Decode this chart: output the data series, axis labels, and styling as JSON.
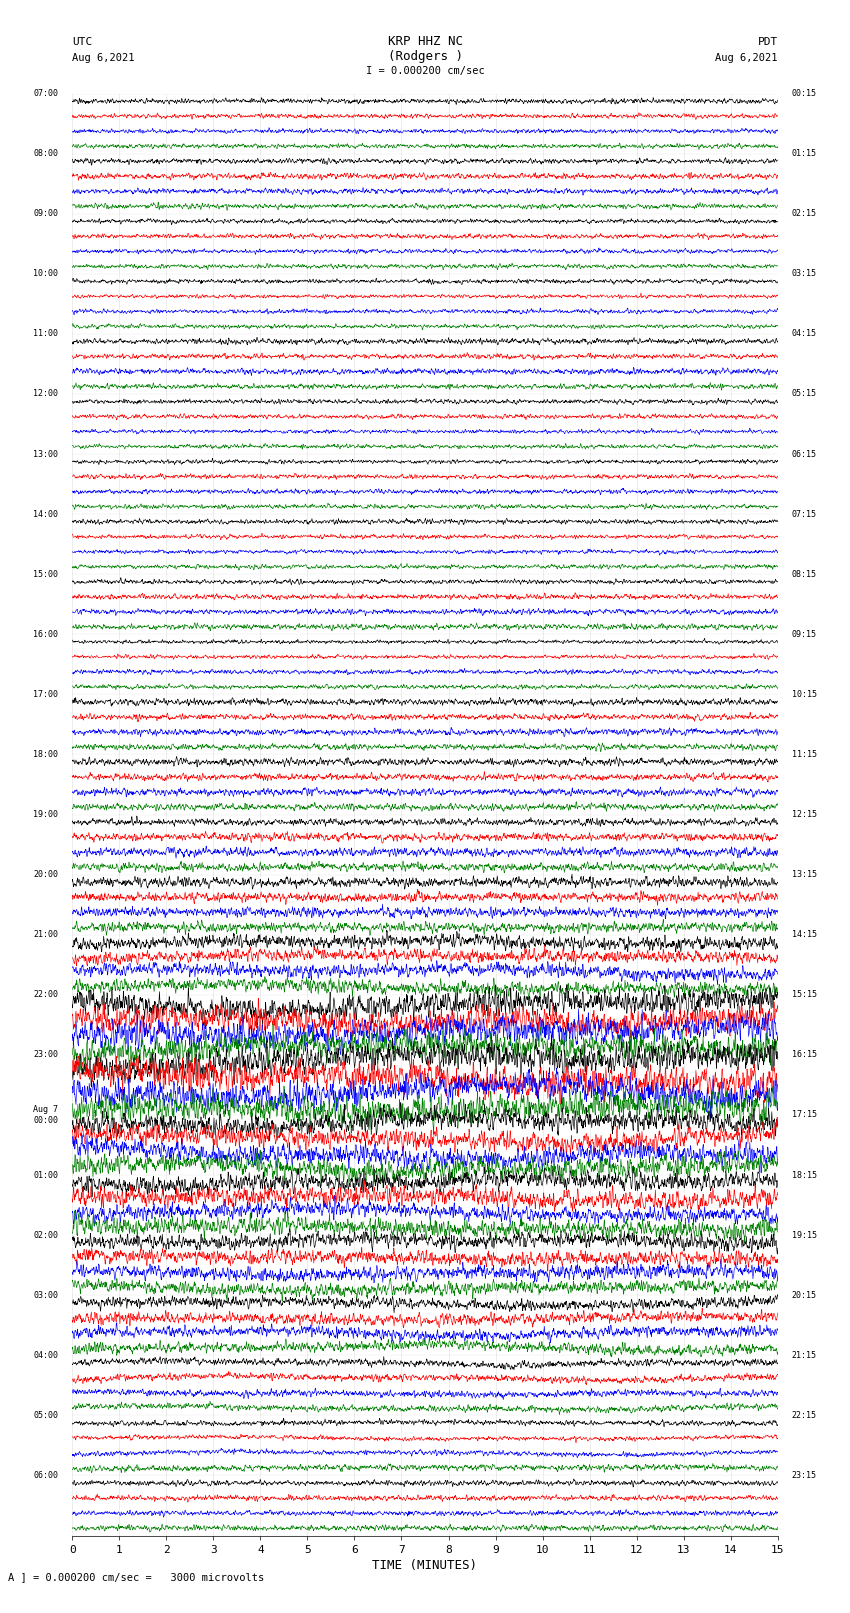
{
  "title_line1": "KRP HHZ NC",
  "title_line2": "(Rodgers )",
  "title_scale": "I = 0.000200 cm/sec",
  "utc_label": "UTC",
  "utc_date": "Aug 6,2021",
  "pdt_label": "PDT",
  "pdt_date": "Aug 6,2021",
  "bottom_note": "A ] = 0.000200 cm/sec =   3000 microvolts",
  "xlabel": "TIME (MINUTES)",
  "xlim": [
    0,
    15
  ],
  "xticks": [
    0,
    1,
    2,
    3,
    4,
    5,
    6,
    7,
    8,
    9,
    10,
    11,
    12,
    13,
    14,
    15
  ],
  "colors": [
    "black",
    "red",
    "blue",
    "green"
  ],
  "left_times": [
    "07:00",
    "08:00",
    "09:00",
    "10:00",
    "11:00",
    "12:00",
    "13:00",
    "14:00",
    "15:00",
    "16:00",
    "17:00",
    "18:00",
    "19:00",
    "20:00",
    "21:00",
    "22:00",
    "23:00",
    "Aug 7\n00:00",
    "01:00",
    "02:00",
    "03:00",
    "04:00",
    "05:00",
    "06:00"
  ],
  "right_times": [
    "00:15",
    "01:15",
    "02:15",
    "03:15",
    "04:15",
    "05:15",
    "06:15",
    "07:15",
    "08:15",
    "09:15",
    "10:15",
    "11:15",
    "12:15",
    "13:15",
    "14:15",
    "15:15",
    "16:15",
    "17:15",
    "18:15",
    "19:15",
    "20:15",
    "21:15",
    "22:15",
    "23:15"
  ],
  "n_rows": 24,
  "traces_per_row": 4,
  "amplitude_by_row": [
    0.5,
    0.6,
    0.5,
    0.5,
    0.6,
    0.5,
    0.5,
    0.5,
    0.6,
    0.5,
    0.7,
    0.8,
    0.9,
    1.2,
    1.8,
    3.5,
    4.0,
    3.0,
    2.5,
    2.0,
    1.5,
    1.0,
    0.7,
    0.6
  ],
  "background_color": "white",
  "fig_width": 8.5,
  "fig_height": 16.13
}
